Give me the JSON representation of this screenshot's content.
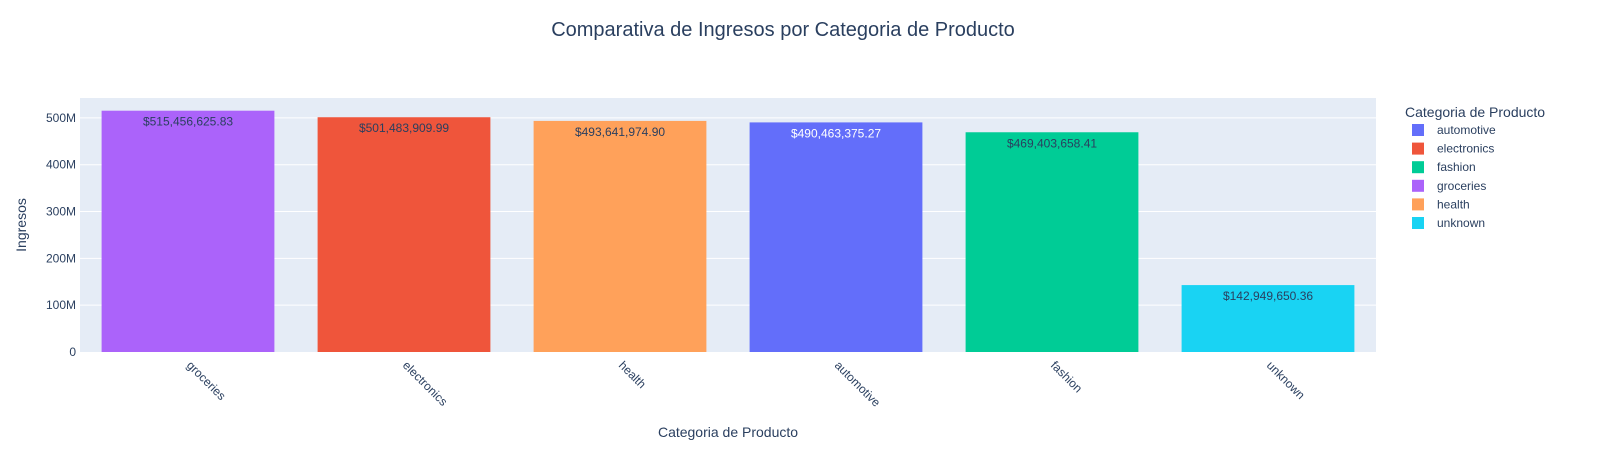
{
  "chart_data": {
    "type": "bar",
    "title": "Comparativa de Ingresos por Categoria de Producto",
    "xlabel": "Categoria de Producto",
    "ylabel": "Ingresos",
    "categories": [
      "groceries",
      "electronics",
      "health",
      "automotive",
      "fashion",
      "unknown"
    ],
    "values": [
      515456625.83,
      501483909.99,
      493641974.9,
      490463375.27,
      469403658.41,
      142949650.36
    ],
    "data_labels": [
      "$515,456,625.83",
      "$501,483,909.99",
      "$493,641,974.90",
      "$490,463,375.27",
      "$469,403,658.41",
      "$142,949,650.36"
    ],
    "ylim": [
      0,
      542585922
    ],
    "yticks": [
      0,
      100000000,
      200000000,
      300000000,
      400000000,
      500000000
    ],
    "ytick_labels": [
      "0",
      "100M",
      "200M",
      "300M",
      "400M",
      "500M"
    ],
    "grid": true,
    "legend": {
      "title": "Categoria de Producto",
      "placement": "right",
      "entries": [
        "automotive",
        "electronics",
        "fashion",
        "groceries",
        "health",
        "unknown"
      ]
    },
    "colors": {
      "automotive": "#636efa",
      "electronics": "#ef553b",
      "fashion": "#00cc96",
      "groceries": "#ab63fa",
      "health": "#ffa15a",
      "unknown": "#19d3f3"
    },
    "plot_background": "#e5ecf6"
  }
}
